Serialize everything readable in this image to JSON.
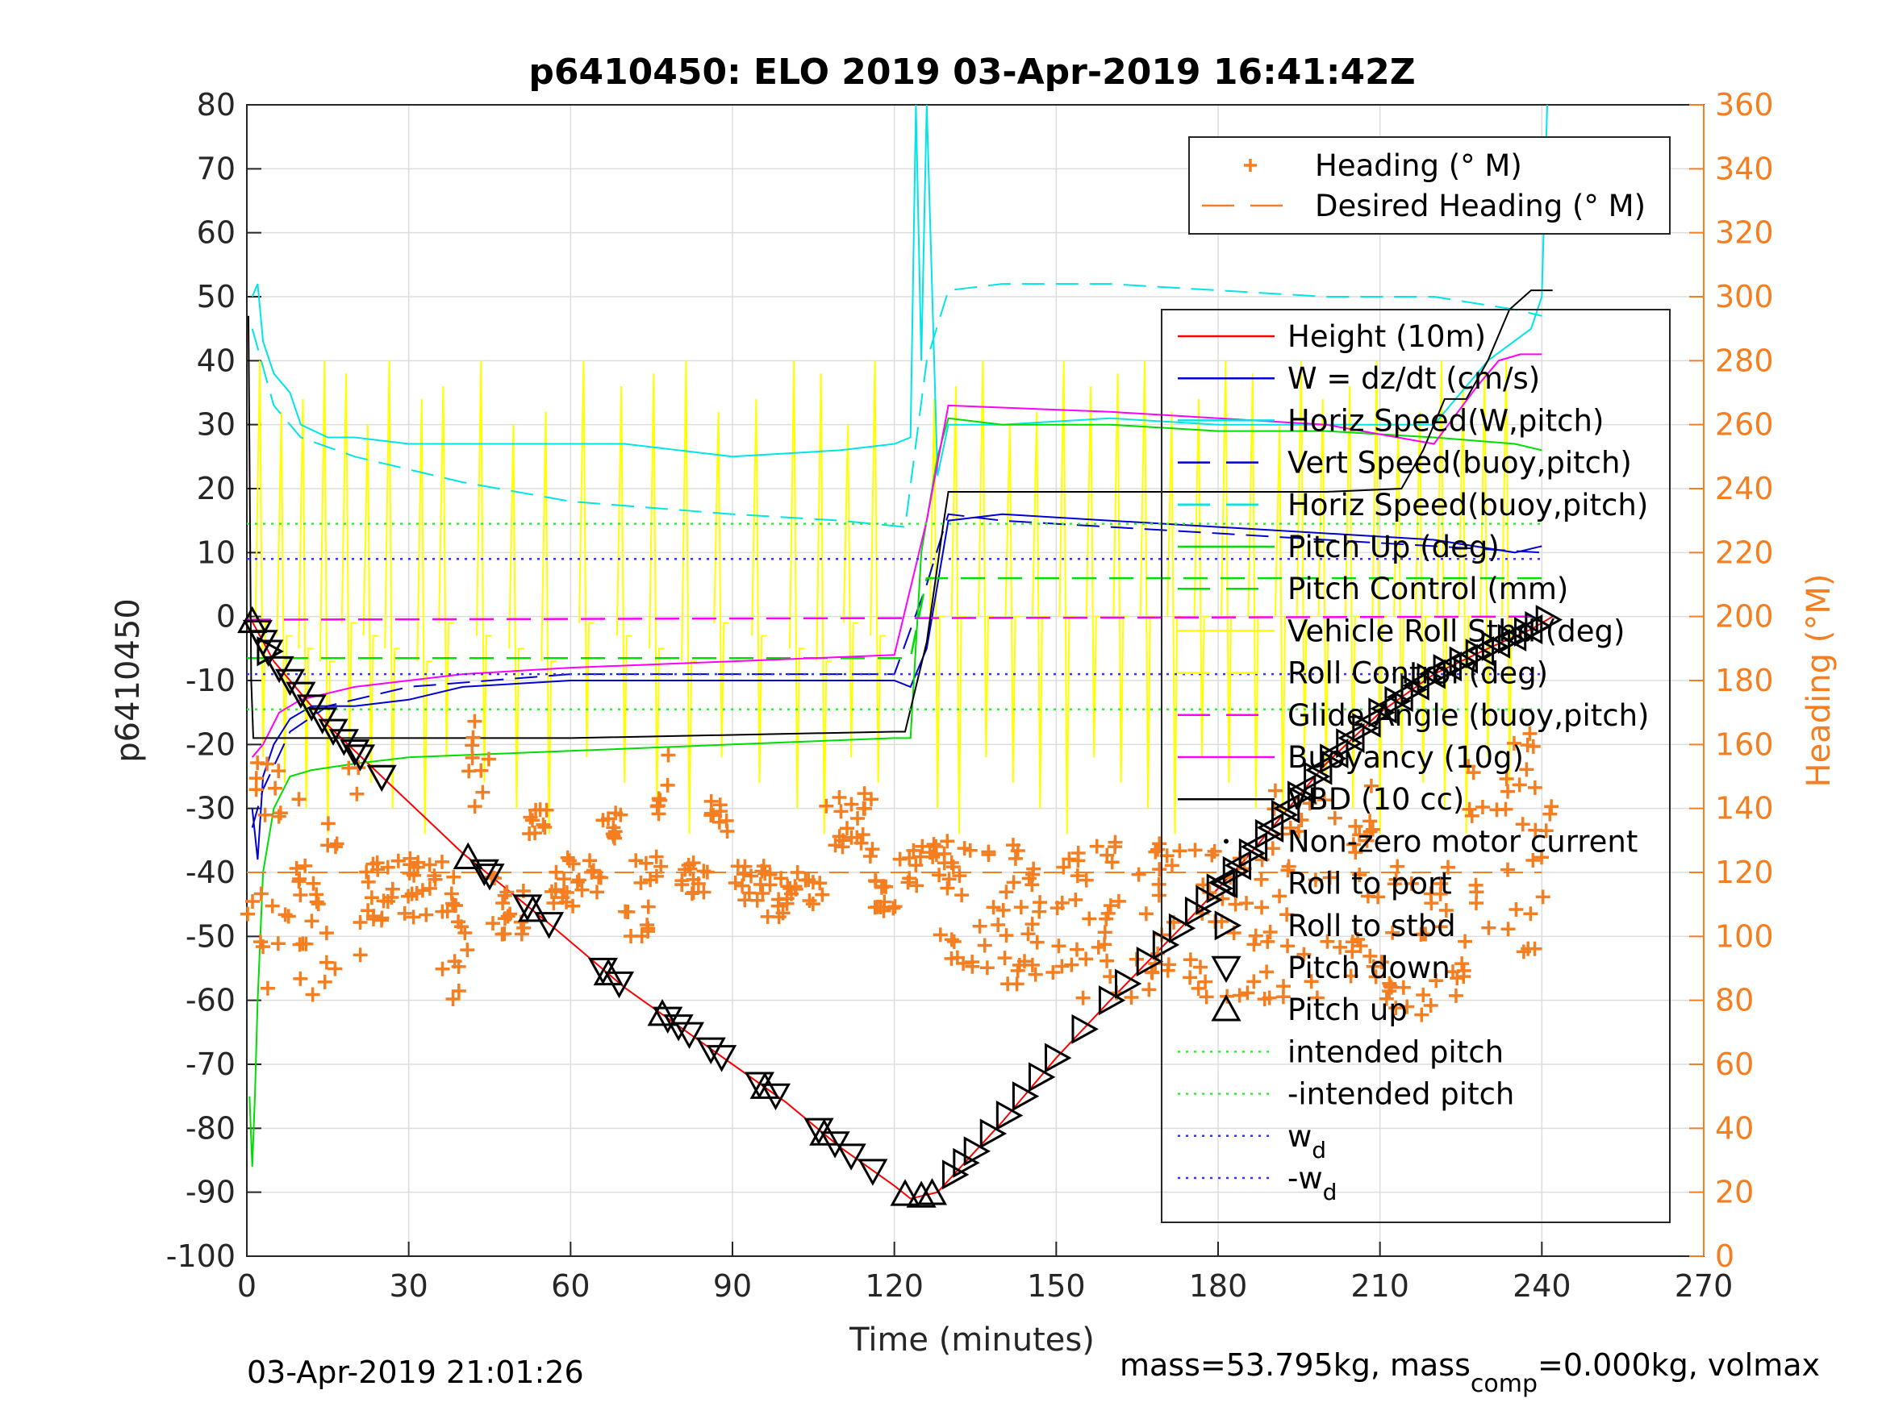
{
  "chart_data": {
    "type": "line",
    "title": "p6410450: ELO 2019 03-Apr-2019 16:41:42Z",
    "xlabel": "Time (minutes)",
    "ylabel": "p6410450",
    "y2label": "Heading (°M)",
    "xlim": [
      0,
      270
    ],
    "ylim": [
      -100,
      80
    ],
    "y2lim": [
      0,
      360
    ],
    "xticks": [
      "0",
      "30",
      "60",
      "90",
      "120",
      "150",
      "180",
      "210",
      "240",
      "270"
    ],
    "yticks": [
      "80",
      "70",
      "60",
      "50",
      "40",
      "30",
      "20",
      "10",
      "0",
      "-10",
      "-20",
      "-30",
      "-40",
      "-50",
      "-60",
      "-70",
      "-80",
      "-90",
      "-100"
    ],
    "y2ticks": [
      "360",
      "340",
      "320",
      "300",
      "280",
      "260",
      "240",
      "220",
      "200",
      "180",
      "160",
      "140",
      "120",
      "100",
      "80",
      "60",
      "40",
      "20",
      "0"
    ],
    "grid": true,
    "colors": {
      "heading": "#f57f20",
      "height": "#ff0000",
      "w": "#0000d0",
      "horiz": "#00e5e5",
      "pitch": "#00dd00",
      "roll": "#ffff00",
      "glide": "#ff00ff",
      "vbd": "#000000",
      "wd": "#3333ff",
      "intended": "#33ee33"
    },
    "legend_top": [
      {
        "label": "Heading (° M)",
        "color": "#f57f20",
        "style": "plus"
      },
      {
        "label": "Desired Heading (° M)",
        "color": "#f57f20",
        "style": "dash"
      }
    ],
    "legend_main": [
      {
        "label": "Height (10m)",
        "color": "#ff0000",
        "style": "solid"
      },
      {
        "label": "W = dz/dt (cm/s)",
        "color": "#0000d0",
        "style": "solid"
      },
      {
        "label": "Horiz Speed(W,pitch)",
        "color": "#00e5e5",
        "style": "solid"
      },
      {
        "label": "Vert Speed(buoy,pitch)",
        "color": "#0000d0",
        "style": "dash"
      },
      {
        "label": "Horiz Speed(buoy,pitch)",
        "color": "#00e5e5",
        "style": "dash"
      },
      {
        "label": "Pitch Up (deg)",
        "color": "#00dd00",
        "style": "solid"
      },
      {
        "label": "Pitch Control (mm)",
        "color": "#00dd00",
        "style": "dash"
      },
      {
        "label": "Vehicle Roll Stbd (deg)",
        "color": "#ffff00",
        "style": "solid"
      },
      {
        "label": "Roll Control (deg)",
        "color": "#ffff00",
        "style": "dash"
      },
      {
        "label": "Glide Angle (buoy,pitch)",
        "color": "#ff00ff",
        "style": "dash"
      },
      {
        "label": "Buoyancy (10g)",
        "color": "#ff00ff",
        "style": "solid"
      },
      {
        "label": "VBD (10 cc)",
        "color": "#000000",
        "style": "solid"
      },
      {
        "label": "Non-zero motor current",
        "color": "#000000",
        "style": "dot"
      },
      {
        "label": "Roll to port",
        "color": "#000000",
        "style": "tri-left"
      },
      {
        "label": "Roll to stbd",
        "color": "#000000",
        "style": "tri-right"
      },
      {
        "label": "Pitch down",
        "color": "#000000",
        "style": "tri-down"
      },
      {
        "label": "Pitch up",
        "color": "#000000",
        "style": "tri-up"
      },
      {
        "label": "intended pitch",
        "color": "#33ee33",
        "style": "dotted"
      },
      {
        "label": "-intended pitch",
        "color": "#33ee33",
        "style": "dotted"
      },
      {
        "label": "w",
        "sub": "d",
        "color": "#3333ff",
        "style": "dotted"
      },
      {
        "label": "-w",
        "sub": "d",
        "color": "#3333ff",
        "style": "dotted"
      }
    ],
    "series": [
      {
        "name": "Height (10m)",
        "axis": "left",
        "color": "#ff0000",
        "x": [
          0.5,
          5,
          15,
          25,
          40,
          56,
          70,
          90,
          100,
          110,
          120,
          123,
          128,
          140,
          150,
          160,
          175,
          185,
          200,
          210,
          220,
          230,
          238,
          242
        ],
        "y": [
          0,
          -7,
          -17,
          -25,
          -37,
          -48,
          -58,
          -70,
          -76,
          -83,
          -89,
          -91,
          -90,
          -79,
          -69,
          -60,
          -47,
          -38,
          -23,
          -15,
          -9,
          -5,
          -2,
          0
        ]
      },
      {
        "name": "W = dz/dt (cm/s)",
        "axis": "left",
        "color": "#0000d0",
        "x": [
          1,
          2,
          3,
          5,
          8,
          12,
          20,
          30,
          40,
          60,
          90,
          120,
          123,
          126,
          128,
          130,
          140,
          160,
          180,
          200,
          220,
          235,
          240
        ],
        "y": [
          -30,
          -38,
          -25,
          -20,
          -16,
          -14,
          -14,
          -13,
          -11,
          -10,
          -10,
          -10,
          -11,
          -5,
          5,
          15,
          16,
          15,
          14,
          13,
          12,
          10,
          11
        ]
      },
      {
        "name": "Horiz Speed(W,pitch)",
        "axis": "left",
        "color": "#00e5e5",
        "x": [
          1,
          2,
          3,
          5,
          8,
          10,
          15,
          20,
          30,
          50,
          70,
          90,
          110,
          120,
          123,
          124,
          125,
          126,
          128,
          130,
          140,
          160,
          180,
          200,
          220,
          230,
          238,
          240,
          241
        ],
        "y": [
          50,
          52,
          43,
          38,
          35,
          30,
          28,
          28,
          27,
          27,
          27,
          25,
          26,
          27,
          28,
          80,
          40,
          80,
          22,
          30,
          30,
          31,
          30,
          30,
          30,
          40,
          45,
          50,
          80
        ]
      },
      {
        "name": "Vert Speed(buoy,pitch)",
        "axis": "left",
        "color": "#0000d0",
        "x": [
          1,
          3,
          8,
          15,
          30,
          60,
          90,
          120,
          126,
          130,
          140,
          160,
          180,
          200,
          220,
          240
        ],
        "y": [
          -33,
          -27,
          -18,
          -14,
          -11,
          -9,
          -9,
          -9,
          5,
          16,
          15,
          14,
          13,
          12,
          11,
          10
        ]
      },
      {
        "name": "Horiz Speed(buoy,pitch)",
        "axis": "left",
        "color": "#00e5e5",
        "x": [
          1,
          5,
          10,
          20,
          40,
          60,
          90,
          110,
          122,
          126,
          130,
          140,
          160,
          180,
          200,
          220,
          235,
          240
        ],
        "y": [
          45,
          33,
          28,
          25,
          21,
          18,
          16,
          15,
          14,
          40,
          51,
          52,
          52,
          51,
          50,
          50,
          48,
          47
        ]
      },
      {
        "name": "Pitch Up (deg)",
        "axis": "left",
        "color": "#00dd00",
        "x": [
          0.5,
          1,
          1.5,
          2,
          3,
          5,
          8,
          12,
          20,
          30,
          60,
          90,
          120,
          123,
          125,
          128,
          130,
          140,
          160,
          180,
          200,
          220,
          235,
          240
        ],
        "y": [
          -75,
          -86,
          -75,
          -60,
          -40,
          -30,
          -25,
          -24,
          -23,
          -22,
          -21,
          -20,
          -19,
          -19,
          10,
          25,
          31,
          30,
          30,
          29,
          29,
          28,
          27,
          26
        ]
      },
      {
        "name": "Pitch Control (mm)",
        "axis": "left",
        "color": "#00dd00",
        "x": [
          0,
          120,
          123,
          126,
          240
        ],
        "y": [
          -6.5,
          -6.5,
          -6.5,
          6,
          6
        ]
      },
      {
        "name": "Glide Angle (buoy,pitch)",
        "axis": "left",
        "color": "#ff00ff",
        "x": [
          0,
          240
        ],
        "y": [
          -0.5,
          0
        ]
      },
      {
        "name": "Buoyancy (10g)",
        "axis": "left",
        "color": "#ff00ff",
        "x": [
          1,
          3,
          6,
          10,
          20,
          40,
          60,
          90,
          120,
          126,
          130,
          160,
          200,
          220,
          228,
          232,
          236,
          240
        ],
        "y": [
          -22,
          -20,
          -15,
          -13,
          -11,
          -9,
          -8,
          -7,
          -6,
          15,
          33,
          32,
          30,
          27,
          36,
          40,
          41,
          41
        ]
      },
      {
        "name": "VBD (10 cc)",
        "axis": "left",
        "color": "#000000",
        "x": [
          0.3,
          0.8,
          1.2,
          10,
          60,
          120,
          122,
          126,
          129,
          130,
          140,
          200,
          214,
          218,
          222,
          226,
          230,
          234,
          238,
          242
        ],
        "y": [
          47,
          -10,
          -19,
          -19,
          -19,
          -18,
          -18,
          -4,
          14,
          19.5,
          19.5,
          19.5,
          20,
          26,
          34,
          34,
          40,
          48,
          51,
          51
        ]
      },
      {
        "name": "Desired Heading (° M)",
        "axis": "right",
        "color": "#f57f20",
        "x": [
          0,
          240
        ],
        "y": [
          120,
          120
        ]
      },
      {
        "name": "intended pitch",
        "axis": "left",
        "color": "#33ee33",
        "x": [
          0,
          240
        ],
        "y": [
          14.5,
          14.5
        ]
      },
      {
        "name": "-intended pitch",
        "axis": "left",
        "color": "#33ee33",
        "x": [
          0,
          240
        ],
        "y": [
          -14.5,
          -14.5
        ]
      },
      {
        "name": "w_d",
        "axis": "left",
        "color": "#3333ff",
        "x": [
          0,
          240
        ],
        "y": [
          9,
          9
        ]
      },
      {
        "name": "-w_d",
        "axis": "left",
        "color": "#3333ff",
        "x": [
          0,
          240
        ],
        "y": [
          -9,
          -9
        ]
      }
    ],
    "roll_spikes_x": [
      3,
      7,
      11,
      15,
      19,
      23,
      27,
      33,
      37,
      44,
      50,
      56,
      63,
      70,
      76,
      82,
      88,
      95,
      102,
      107,
      112,
      117,
      128,
      132,
      137,
      142,
      147,
      152,
      157,
      162,
      167,
      172,
      177,
      182,
      187,
      192,
      196,
      200,
      205,
      210,
      214,
      218,
      222,
      226,
      230,
      234
    ],
    "tri_down_x": [
      2,
      3,
      4,
      6,
      8,
      10,
      12,
      14,
      16,
      18,
      20,
      21,
      25,
      44,
      45,
      52,
      56,
      66,
      69,
      78,
      80,
      82,
      86,
      88,
      95,
      98,
      106,
      109,
      112,
      116
    ],
    "tri_up_x": [
      1,
      41,
      53,
      67,
      77,
      96,
      107,
      122,
      125,
      127
    ],
    "tri_right_x": [
      4,
      131,
      133,
      135,
      138,
      141,
      144,
      147,
      150,
      155,
      160,
      163,
      167,
      170,
      173,
      176,
      178,
      180,
      183,
      186,
      189,
      192,
      195,
      198,
      201,
      204,
      207,
      210,
      213,
      216,
      219,
      222,
      225,
      228,
      231,
      234,
      237,
      239,
      241
    ],
    "tri_left_x": [
      181,
      184,
      187,
      190,
      193,
      196,
      199,
      202,
      205,
      208,
      211,
      214,
      217,
      220,
      223,
      226,
      229,
      232,
      235,
      238
    ],
    "heading_clusters": [
      {
        "x0": 0,
        "x1": 22,
        "y0": 80,
        "y1": 155
      },
      {
        "x0": 22,
        "x1": 40,
        "y0": 105,
        "y1": 125
      },
      {
        "x0": 36,
        "x1": 41,
        "y0": 78,
        "y1": 110
      },
      {
        "x0": 41,
        "x1": 45,
        "y0": 140,
        "y1": 170
      },
      {
        "x0": 45,
        "x1": 52,
        "y0": 100,
        "y1": 125
      },
      {
        "x0": 52,
        "x1": 56,
        "y0": 130,
        "y1": 140
      },
      {
        "x0": 56,
        "x1": 66,
        "y0": 108,
        "y1": 125
      },
      {
        "x0": 66,
        "x1": 70,
        "y0": 130,
        "y1": 143
      },
      {
        "x0": 70,
        "x1": 77,
        "y0": 100,
        "y1": 125
      },
      {
        "x0": 76,
        "x1": 80,
        "y0": 135,
        "y1": 158
      },
      {
        "x0": 80,
        "x1": 86,
        "y0": 110,
        "y1": 125
      },
      {
        "x0": 86,
        "x1": 90,
        "y0": 132,
        "y1": 145
      },
      {
        "x0": 90,
        "x1": 96,
        "y0": 110,
        "y1": 125
      },
      {
        "x0": 96,
        "x1": 100,
        "y0": 106,
        "y1": 120
      },
      {
        "x0": 100,
        "x1": 107,
        "y0": 110,
        "y1": 120
      },
      {
        "x0": 107,
        "x1": 116,
        "y0": 125,
        "y1": 145
      },
      {
        "x0": 116,
        "x1": 122,
        "y0": 106,
        "y1": 125
      },
      {
        "x0": 122,
        "x1": 130,
        "y0": 115,
        "y1": 130
      },
      {
        "x0": 128,
        "x1": 150,
        "y0": 85,
        "y1": 130
      },
      {
        "x0": 150,
        "x1": 190,
        "y0": 80,
        "y1": 130
      },
      {
        "x0": 190,
        "x1": 210,
        "y0": 80,
        "y1": 150
      },
      {
        "x0": 210,
        "x1": 226,
        "y0": 75,
        "y1": 125
      },
      {
        "x0": 226,
        "x1": 242,
        "y0": 95,
        "y1": 165
      }
    ]
  },
  "footer": {
    "timestamp": "03-Apr-2019 21:01:26",
    "mass_prefix": "mass=53.795kg, mass",
    "mass_sub": "comp",
    "mass_suffix": "=0.000kg, volmax"
  }
}
